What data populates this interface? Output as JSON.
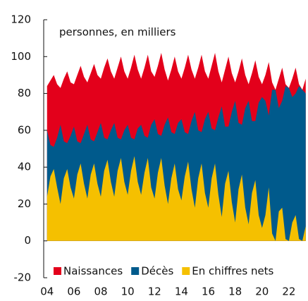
{
  "chart_data": {
    "type": "area",
    "title": "personnes, en milliers",
    "x": [
      2004,
      2004.25,
      2004.5,
      2004.75,
      2005,
      2005.25,
      2005.5,
      2005.75,
      2006,
      2006.25,
      2006.5,
      2006.75,
      2007,
      2007.25,
      2007.5,
      2007.75,
      2008,
      2008.25,
      2008.5,
      2008.75,
      2009,
      2009.25,
      2009.5,
      2009.75,
      2010,
      2010.25,
      2010.5,
      2010.75,
      2011,
      2011.25,
      2011.5,
      2011.75,
      2012,
      2012.25,
      2012.5,
      2012.75,
      2013,
      2013.25,
      2013.5,
      2013.75,
      2014,
      2014.25,
      2014.5,
      2014.75,
      2015,
      2015.25,
      2015.5,
      2015.75,
      2016,
      2016.25,
      2016.5,
      2016.75,
      2017,
      2017.25,
      2017.5,
      2017.75,
      2018,
      2018.25,
      2018.5,
      2018.75,
      2019,
      2019.25,
      2019.5,
      2019.75,
      2020,
      2020.25,
      2020.5,
      2020.75,
      2021,
      2021.25,
      2021.5,
      2021.75,
      2022,
      2022.25,
      2022.5,
      2022.75,
      2023,
      2023.25
    ],
    "series": [
      {
        "name": "Naissances",
        "color": "#e3001b",
        "values": [
          84,
          87,
          90,
          85,
          83,
          88,
          92,
          86,
          85,
          90,
          95,
          89,
          86,
          91,
          96,
          90,
          88,
          94,
          99,
          92,
          88,
          94,
          100,
          92,
          88,
          94,
          101,
          93,
          88,
          94,
          101,
          92,
          89,
          95,
          102,
          93,
          87,
          93,
          100,
          92,
          88,
          94,
          101,
          93,
          88,
          94,
          101,
          92,
          88,
          95,
          102,
          92,
          86,
          93,
          100,
          91,
          86,
          92,
          99,
          90,
          85,
          91,
          98,
          89,
          85,
          90,
          97,
          86,
          82,
          88,
          94,
          85,
          83,
          88,
          94,
          85,
          82,
          88
        ]
      },
      {
        "name": "Décès",
        "color": "#005a8c",
        "values": [
          60,
          52,
          51,
          56,
          63,
          54,
          53,
          57,
          62,
          54,
          53,
          58,
          63,
          55,
          54,
          59,
          64,
          56,
          55,
          60,
          64,
          56,
          55,
          60,
          63,
          56,
          55,
          61,
          63,
          57,
          56,
          63,
          66,
          58,
          57,
          63,
          67,
          59,
          58,
          64,
          66,
          59,
          58,
          65,
          70,
          60,
          59,
          66,
          70,
          61,
          60,
          67,
          73,
          62,
          62,
          70,
          76,
          64,
          63,
          72,
          76,
          65,
          65,
          75,
          78,
          76,
          68,
          82,
          82,
          72,
          76,
          84,
          83,
          78,
          80,
          84,
          82,
          80
        ]
      },
      {
        "name": "En chiffres nets",
        "color": "#f5c000",
        "values": [
          24,
          35,
          39,
          29,
          20,
          34,
          39,
          29,
          23,
          36,
          42,
          31,
          23,
          36,
          42,
          31,
          24,
          38,
          44,
          32,
          24,
          38,
          45,
          32,
          25,
          38,
          46,
          32,
          25,
          37,
          45,
          29,
          23,
          37,
          45,
          30,
          20,
          34,
          42,
          28,
          22,
          35,
          43,
          28,
          18,
          34,
          42,
          26,
          18,
          34,
          42,
          25,
          13,
          31,
          38,
          21,
          10,
          28,
          36,
          18,
          9,
          26,
          33,
          14,
          7,
          14,
          29,
          4,
          0,
          16,
          18,
          1,
          0,
          10,
          14,
          1,
          0,
          8
        ]
      }
    ],
    "xlim": [
      2003.75,
      2023.42
    ],
    "xticks": [
      {
        "value": 2004,
        "label": "04"
      },
      {
        "value": 2006,
        "label": "06"
      },
      {
        "value": 2008,
        "label": "08"
      },
      {
        "value": 2010,
        "label": "10"
      },
      {
        "value": 2012,
        "label": "12"
      },
      {
        "value": 2014,
        "label": "14"
      },
      {
        "value": 2016,
        "label": "16"
      },
      {
        "value": 2018,
        "label": "18"
      },
      {
        "value": 2020,
        "label": "20"
      },
      {
        "value": 2022,
        "label": "22"
      }
    ],
    "ylim": [
      -20,
      120
    ],
    "yticks": [
      -20,
      0,
      20,
      40,
      60,
      80,
      100,
      120
    ],
    "legend": "bottom"
  }
}
